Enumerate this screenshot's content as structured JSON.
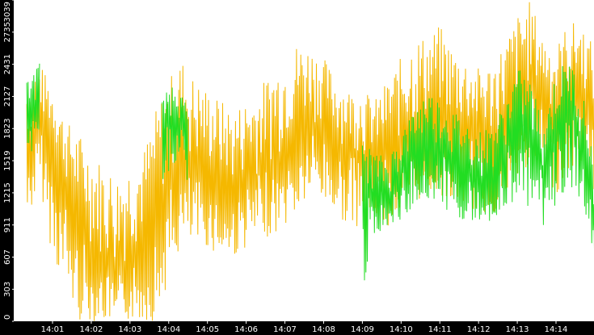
{
  "chart_data": {
    "type": "line",
    "title": "",
    "xlabel": "",
    "ylabel": "",
    "grid": false,
    "x_range": [
      "14:00:20",
      "14:15:05"
    ],
    "ylim": [
      0,
      3039
    ],
    "y_ticks": [
      "0",
      "303",
      "607",
      "911",
      "1215",
      "1519",
      "1823",
      "2127",
      "2431",
      "2735",
      "3039"
    ],
    "x_ticks": [
      "14:01",
      "14:02",
      "14:03",
      "14:04",
      "14:05",
      "14:06",
      "14:07",
      "14:08",
      "14:09",
      "14:10",
      "14:11",
      "14:12",
      "14:13",
      "14:14"
    ],
    "colors": {
      "series_a": "#f5b800",
      "series_b": "#22dd22",
      "axis_bg": "#000000",
      "tick_text": "#ffffff"
    },
    "series": [
      {
        "color": "#f5b800",
        "x": [
          "14:00:20",
          "14:00:40",
          "14:01:00",
          "14:01:20",
          "14:01:40",
          "14:02:00",
          "14:02:20",
          "14:02:40",
          "14:03:00",
          "14:03:20",
          "14:03:40",
          "14:04:00",
          "14:04:20",
          "14:04:40",
          "14:05:00",
          "14:05:20",
          "14:05:40",
          "14:06:00",
          "14:06:20",
          "14:06:40",
          "14:07:00",
          "14:07:20",
          "14:07:40",
          "14:08:00",
          "14:08:20",
          "14:08:40",
          "14:09:00",
          "14:09:20",
          "14:09:40",
          "14:10:00",
          "14:10:20",
          "14:10:40",
          "14:11:00",
          "14:11:20",
          "14:11:40",
          "14:12:00",
          "14:12:20",
          "14:12:40",
          "14:13:00",
          "14:13:20",
          "14:13:40",
          "14:14:00",
          "14:14:20",
          "14:14:40",
          "14:15:00"
        ],
        "values": [
          1600,
          1900,
          1700,
          1300,
          900,
          700,
          500,
          400,
          600,
          700,
          900,
          1300,
          1500,
          1400,
          1400,
          1300,
          1200,
          1350,
          1400,
          1450,
          1600,
          1750,
          1900,
          1850,
          1700,
          1600,
          1550,
          1500,
          1550,
          1650,
          1750,
          1850,
          1900,
          1800,
          1750,
          1700,
          1650,
          1800,
          2000,
          2200,
          2100,
          1900,
          2100,
          2200,
          1900
        ],
        "low": [
          900,
          1300,
          600,
          300,
          0,
          0,
          0,
          0,
          0,
          0,
          0,
          400,
          700,
          700,
          700,
          600,
          600,
          700,
          800,
          800,
          900,
          1000,
          1200,
          1100,
          1000,
          900,
          900,
          1000,
          900,
          1000,
          1100,
          1200,
          1200,
          1100,
          1100,
          1000,
          1000,
          1100,
          1300,
          1500,
          1400,
          1200,
          1400,
          1500,
          1200
        ],
        "high": [
          2300,
          2450,
          2200,
          1900,
          1800,
          1600,
          1500,
          1400,
          1500,
          1600,
          2000,
          2300,
          2500,
          2300,
          2200,
          2100,
          2000,
          2100,
          2200,
          2400,
          2500,
          2650,
          2600,
          2500,
          2300,
          2200,
          2200,
          2100,
          2300,
          2500,
          2700,
          2700,
          2800,
          2600,
          2500,
          2400,
          2450,
          2650,
          2900,
          3039,
          2700,
          2600,
          2850,
          2800,
          2600
        ]
      },
      {
        "color": "#22dd22",
        "x": [
          "14:00:20",
          "14:00:40",
          "14:03:50",
          "14:04:10",
          "14:04:30",
          "14:09:00",
          "14:09:20",
          "14:09:40",
          "14:10:00",
          "14:10:20",
          "14:10:40",
          "14:11:00",
          "14:11:20",
          "14:11:40",
          "14:12:00",
          "14:12:20",
          "14:12:40",
          "14:13:00",
          "14:13:20",
          "14:13:40",
          "14:14:00",
          "14:14:20",
          "14:14:40",
          "14:15:00"
        ],
        "values": [
          1900,
          2150,
          1800,
          2000,
          1700,
          1300,
          1200,
          1150,
          1400,
          1600,
          1700,
          1650,
          1500,
          1450,
          1350,
          1400,
          1600,
          1900,
          1700,
          1400,
          1800,
          2000,
          1750,
          1000
        ],
        "low": [
          1500,
          1700,
          1300,
          1500,
          1300,
          300,
          800,
          900,
          950,
          1100,
          1150,
          1100,
          1000,
          950,
          900,
          950,
          1000,
          1200,
          1000,
          900,
          1100,
          1300,
          1100,
          500
        ],
        "high": [
          2300,
          2450,
          2100,
          2300,
          2000,
          1700,
          1600,
          1550,
          1800,
          2000,
          2200,
          2100,
          2000,
          1900,
          1800,
          1850,
          2050,
          2400,
          2300,
          1900,
          2350,
          2500,
          2200,
          1600
        ]
      }
    ]
  }
}
